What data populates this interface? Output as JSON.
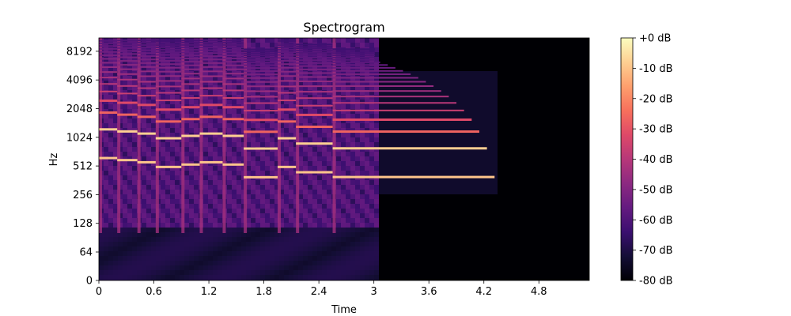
{
  "chart_data": {
    "type": "heatmap",
    "title": "Spectrogram",
    "xlabel": "Time",
    "ylabel": "Hz",
    "x_scale": "linear",
    "y_scale": "log2",
    "xlim": [
      0,
      5.35
    ],
    "x_ticks": [
      0,
      0.6,
      1.2,
      1.8,
      2.4,
      3,
      3.6,
      4.2,
      4.8
    ],
    "x_tick_labels": [
      "0",
      "0.6",
      "1.2",
      "1.8",
      "2.4",
      "3",
      "3.6",
      "4.2",
      "4.8"
    ],
    "y_ticks": [
      0,
      64,
      128,
      256,
      512,
      1024,
      2048,
      4096,
      8192
    ],
    "y_tick_labels": [
      "0",
      "64",
      "128",
      "256",
      "512",
      "1024",
      "2048",
      "4096",
      "8192"
    ],
    "colorbar": {
      "colormap": "magma",
      "range_db": [
        -80,
        0
      ],
      "ticks": [
        0,
        -10,
        -20,
        -30,
        -40,
        -50,
        -60,
        -70,
        -80
      ],
      "tick_labels": [
        "+0 dB",
        "-10 dB",
        "-20 dB",
        "-30 dB",
        "-40 dB",
        "-50 dB",
        "-60 dB",
        "-70 dB",
        "-80 dB"
      ]
    },
    "notes": [
      {
        "start_s": 0.0,
        "end_s": 0.2,
        "f0_hz": 620
      },
      {
        "start_s": 0.2,
        "end_s": 0.42,
        "f0_hz": 590
      },
      {
        "start_s": 0.42,
        "end_s": 0.62,
        "f0_hz": 560
      },
      {
        "start_s": 0.62,
        "end_s": 0.9,
        "f0_hz": 500
      },
      {
        "start_s": 0.9,
        "end_s": 1.1,
        "f0_hz": 530
      },
      {
        "start_s": 1.1,
        "end_s": 1.35,
        "f0_hz": 560
      },
      {
        "start_s": 1.35,
        "end_s": 1.58,
        "f0_hz": 530
      },
      {
        "start_s": 1.58,
        "end_s": 1.95,
        "f0_hz": 390
      },
      {
        "start_s": 1.95,
        "end_s": 2.15,
        "f0_hz": 500
      },
      {
        "start_s": 2.15,
        "end_s": 2.55,
        "f0_hz": 440
      },
      {
        "start_s": 2.55,
        "end_s": 4.4,
        "f0_hz": 392
      }
    ]
  }
}
